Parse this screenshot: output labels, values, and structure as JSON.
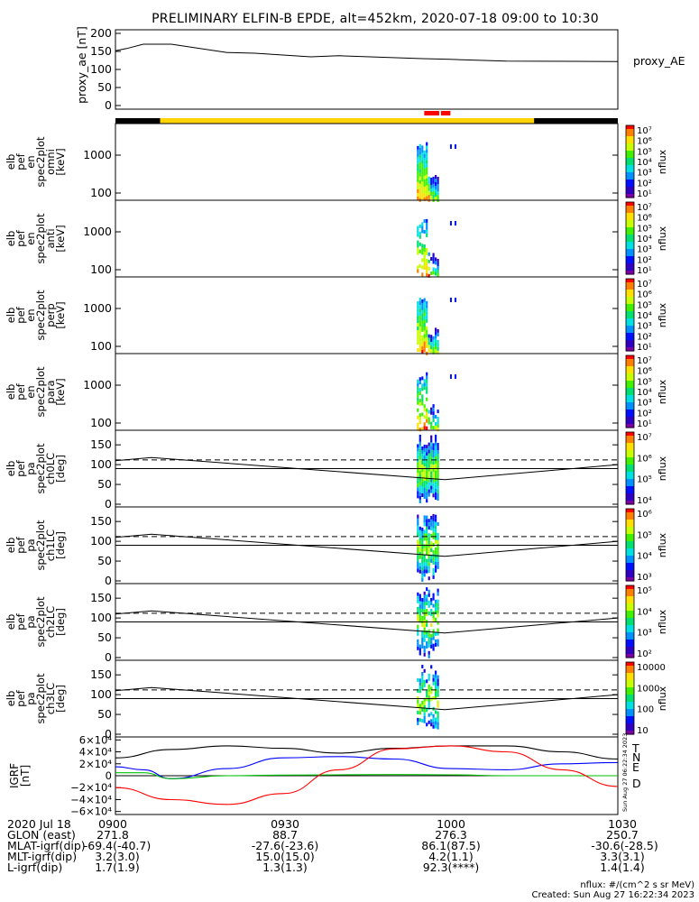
{
  "title": "PRELIMINARY ELFIN-B EPDE, alt=452km, 2020-07-18 09:00 to 10:30",
  "colors": {
    "bar_black": "#000000",
    "bar_yellow": "#ffd400",
    "bar_red": "#ff0000",
    "igrf_T": "#000000",
    "igrf_N": "#0000ff",
    "igrf_E": "#00c000",
    "igrf_D": "#ff0000"
  },
  "colormap": [
    "#ffffff",
    "#7a00a0",
    "#3000c0",
    "#0010ff",
    "#0090ff",
    "#00e0e0",
    "#00e070",
    "#40f000",
    "#c8ff00",
    "#ffe000",
    "#ff8000",
    "#ff0000"
  ],
  "chart_data": [
    {
      "type": "line",
      "panel": "proxy_ae",
      "ylabel": "proxy_ae [nT]",
      "legend": "proxy_AE",
      "ylim": [
        -10,
        210
      ],
      "yticks": [
        "200",
        "150",
        "100",
        "50",
        "0"
      ],
      "x": [
        "09:00",
        "09:02",
        "09:05",
        "09:10",
        "09:20",
        "09:25",
        "09:35",
        "09:40",
        "09:55",
        "10:00",
        "10:10",
        "10:30"
      ],
      "values": [
        152,
        158,
        170,
        170,
        147,
        145,
        135,
        138,
        130,
        128,
        123,
        122
      ]
    },
    {
      "type": "bar",
      "panel": "status_bar",
      "segments": [
        {
          "color": "black",
          "from": "09:00",
          "to": "09:08"
        },
        {
          "color": "yellow",
          "from": "09:08",
          "to": "10:15"
        },
        {
          "color": "black",
          "from": "10:15",
          "to": "10:30"
        },
        {
          "color": "red",
          "from": "09:55",
          "to": "09:58"
        },
        {
          "color": "red",
          "from": "09:58",
          "to": "10:00"
        }
      ]
    },
    {
      "type": "heatmap",
      "panel": "en_omni",
      "ylabel": "elb pef en spec2plot omni [keV]",
      "yscale": "log",
      "yticks": [
        "1000",
        "100"
      ],
      "zlabel": "nflux",
      "zticks": [
        "10⁷",
        "10⁶",
        "10⁵",
        "10⁴",
        "10³",
        "10²",
        "10¹"
      ],
      "x_range": [
        "09:54",
        "09:58"
      ]
    },
    {
      "type": "heatmap",
      "panel": "en_anti",
      "ylabel": "elb pef en spec2plot anti [keV]",
      "yscale": "log",
      "yticks": [
        "1000",
        "100"
      ],
      "zlabel": "nflux",
      "zticks": [
        "10⁷",
        "10⁶",
        "10⁵",
        "10⁴",
        "10³",
        "10²",
        "10¹"
      ],
      "x_range": [
        "09:54",
        "09:58"
      ]
    },
    {
      "type": "heatmap",
      "panel": "en_perp",
      "ylabel": "elb pef en spec2plot perp [keV]",
      "yscale": "log",
      "yticks": [
        "1000",
        "100"
      ],
      "zlabel": "nflux",
      "zticks": [
        "10⁷",
        "10⁶",
        "10⁵",
        "10⁴",
        "10³",
        "10²",
        "10¹"
      ],
      "x_range": [
        "09:54",
        "09:58"
      ]
    },
    {
      "type": "heatmap",
      "panel": "en_para",
      "ylabel": "elb pef en spec2plot para [keV]",
      "yscale": "log",
      "yticks": [
        "1000",
        "100"
      ],
      "zlabel": "nflux",
      "zticks": [
        "10⁷",
        "10⁶",
        "10⁵",
        "10⁴",
        "10³",
        "10²",
        "10¹"
      ],
      "x_range": [
        "09:54",
        "09:58"
      ]
    },
    {
      "type": "heatmap",
      "panel": "ch0LC",
      "ylabel": "elb pef pa spec2plot ch0LC [deg]",
      "ylim": [
        0,
        180
      ],
      "yticks": [
        "150",
        "100",
        "50",
        "0"
      ],
      "zlabel": "nflux",
      "zticks": [
        "10⁷",
        "10⁶",
        "10⁵",
        "10⁴"
      ],
      "x_range": [
        "09:54",
        "09:58"
      ]
    },
    {
      "type": "heatmap",
      "panel": "ch1LC",
      "ylabel": "elb pef pa spec2plot ch1LC [deg]",
      "ylim": [
        0,
        180
      ],
      "yticks": [
        "150",
        "100",
        "50",
        "0"
      ],
      "zlabel": "nflux",
      "zticks": [
        "10⁶",
        "10⁵",
        "10⁴",
        "10³"
      ],
      "x_range": [
        "09:54",
        "09:58"
      ]
    },
    {
      "type": "heatmap",
      "panel": "ch2LC",
      "ylabel": "elb pef pa spec2plot ch2LC [deg]",
      "ylim": [
        0,
        180
      ],
      "yticks": [
        "150",
        "100",
        "50",
        "0"
      ],
      "zlabel": "nflux",
      "zticks": [
        "10⁵",
        "10⁴",
        "10³",
        "10²"
      ],
      "x_range": [
        "09:54",
        "09:58"
      ]
    },
    {
      "type": "heatmap",
      "panel": "ch3LC",
      "ylabel": "elb pef pa spec2plot ch3LC [deg]",
      "ylim": [
        0,
        180
      ],
      "yticks": [
        "150",
        "100",
        "50",
        "0"
      ],
      "zlabel": "nflux",
      "zticks": [
        "10000",
        "1000",
        "100",
        "10"
      ],
      "x_range": [
        "09:54",
        "09:58"
      ]
    },
    {
      "type": "line",
      "panel": "igrf",
      "ylabel": "IGRF [nT]",
      "ylim": [
        -65000,
        65000
      ],
      "yticks": [
        "6×10⁴",
        "4×10⁴",
        "2×10⁴",
        "0",
        "−2×10⁴",
        "−4×10⁴",
        "−6×10⁴"
      ],
      "series": [
        {
          "name": "T",
          "x": [
            "09:00",
            "09:10",
            "09:20",
            "09:30",
            "09:40",
            "09:50",
            "10:00",
            "10:10",
            "10:20",
            "10:30"
          ],
          "values": [
            30000,
            44000,
            50000,
            46000,
            38000,
            46000,
            50000,
            50000,
            40000,
            28000
          ]
        },
        {
          "name": "N",
          "x": [
            "09:00",
            "09:05",
            "09:10",
            "09:20",
            "09:30",
            "09:40",
            "09:50",
            "10:00",
            "10:10",
            "10:20",
            "10:30"
          ],
          "values": [
            15000,
            10000,
            -5000,
            12000,
            30000,
            32000,
            28000,
            12000,
            10000,
            20000,
            22000
          ]
        },
        {
          "name": "E",
          "x": [
            "09:00",
            "09:05",
            "09:10",
            "09:20",
            "09:30",
            "09:40",
            "09:50",
            "10:00",
            "10:10",
            "10:20",
            "10:30"
          ],
          "values": [
            5000,
            5000,
            -5000,
            0,
            1000,
            1500,
            2000,
            1500,
            0,
            0,
            0
          ]
        },
        {
          "name": "D",
          "x": [
            "09:00",
            "09:10",
            "09:20",
            "09:30",
            "09:40",
            "09:50",
            "10:00",
            "10:10",
            "10:20",
            "10:30"
          ],
          "values": [
            -20000,
            -40000,
            -48000,
            -30000,
            10000,
            45000,
            50000,
            40000,
            10000,
            -18000
          ]
        }
      ]
    }
  ],
  "footer": {
    "rows": [
      [
        "2020 Jul 18",
        "0900",
        "0930",
        "1000",
        "1030"
      ],
      [
        "GLON (east)",
        "271.8",
        "88.7",
        "276.3",
        "250.7"
      ],
      [
        "MLAT-igrf(dip)",
        "-69.4(-40.7)",
        "-27.6(-23.6)",
        "86.1(87.5)",
        "-30.6(-28.5)"
      ],
      [
        "MLT-igrf(dip)",
        "3.2(3.0)",
        "15.0(15.0)",
        "4.2(1.1)",
        "3.3(3.1)"
      ],
      [
        "L-igrf(dip)",
        "1.7(1.9)",
        "1.3(1.3)",
        "92.3(****)",
        "1.4(1.4)"
      ]
    ],
    "nflux_units": "nflux: #/(cm^2 s sr MeV)",
    "created": "Created: Sun Aug 27 16:22:34 2023",
    "side_stamp": "Sun Aug 27 06:22:34 2023"
  }
}
